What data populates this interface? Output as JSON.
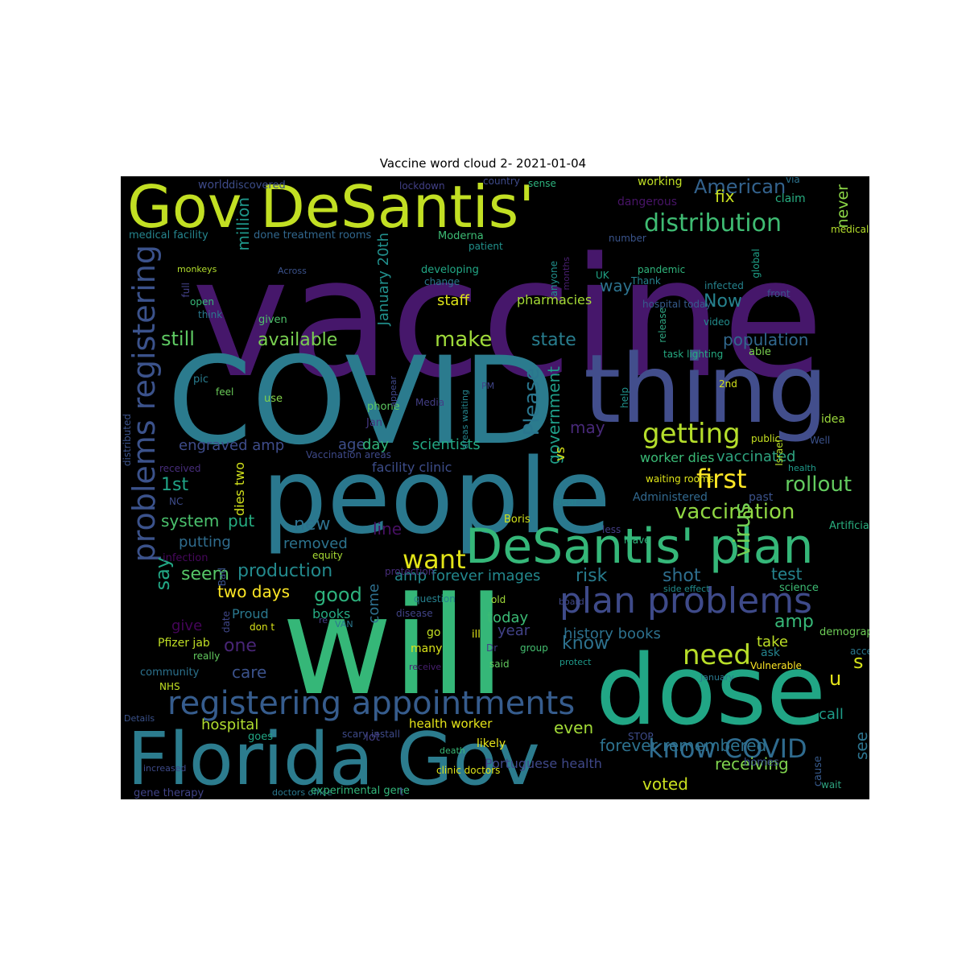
{
  "title": "Vaccine word cloud 2- 2021-01-04",
  "words": [
    {
      "t": "vaccine",
      "c": "#46176b"
    },
    {
      "t": "COVID",
      "c": "#2b7b8e"
    },
    {
      "t": "thing",
      "c": "#424e8c"
    },
    {
      "t": "people",
      "c": "#2a788e"
    },
    {
      "t": "will",
      "c": "#35b778"
    },
    {
      "t": "dose",
      "c": "#21a685"
    },
    {
      "t": "Gov DeSantis'",
      "c": "#c2df23"
    },
    {
      "t": "Florida Gov",
      "c": "#2c7c8e"
    },
    {
      "t": "DeSantis' plan",
      "c": "#35b779"
    },
    {
      "t": "plan problems",
      "c": "#3e4a89"
    },
    {
      "t": "registering appointments",
      "c": "#365c8d"
    },
    {
      "t": "problems registering",
      "c": "#3b528b"
    },
    {
      "t": "distribution",
      "c": "#3fbc73"
    },
    {
      "t": "getting",
      "c": "#b5de2b"
    },
    {
      "t": "first",
      "c": "#fde725"
    },
    {
      "t": "need",
      "c": "#b8de29"
    },
    {
      "t": "know COVID",
      "c": "#2f6b8e"
    },
    {
      "t": "vaccination",
      "c": "#90d743"
    },
    {
      "t": "rollout",
      "c": "#63cb5f"
    },
    {
      "t": "American",
      "c": "#33628d"
    },
    {
      "t": "want",
      "c": "#e2e418"
    },
    {
      "t": "make",
      "c": "#9fda3a"
    },
    {
      "t": "still",
      "c": "#5ec962"
    },
    {
      "t": "available",
      "c": "#7ad151"
    },
    {
      "t": "state",
      "c": "#287d8e"
    },
    {
      "t": "population",
      "c": "#31688e"
    },
    {
      "t": "Now",
      "c": "#26828e"
    },
    {
      "t": "way",
      "c": "#2c728e"
    },
    {
      "t": "staff",
      "c": "#dde318"
    },
    {
      "t": "pharmacies",
      "c": "#a5db36"
    },
    {
      "t": "fix",
      "c": "#c8e020"
    },
    {
      "t": "million",
      "c": "#1f978b"
    },
    {
      "t": "January 20th",
      "c": "#21908d"
    },
    {
      "t": "Please",
      "c": "#2a768e"
    },
    {
      "t": "government",
      "c": "#1f9e89"
    },
    {
      "t": "may",
      "c": "#482979"
    },
    {
      "t": "vs",
      "c": "#d8e219"
    },
    {
      "t": "scientists",
      "c": "#22a884"
    },
    {
      "t": "age",
      "c": "#3d4e8a"
    },
    {
      "t": "day",
      "c": "#31b57b"
    },
    {
      "t": "engraved amp",
      "c": "#3e4c8a"
    },
    {
      "t": "vaccinated",
      "c": "#2ea37f"
    },
    {
      "t": "worker dies",
      "c": "#3aba76"
    },
    {
      "t": "1st",
      "c": "#20a386"
    },
    {
      "t": "system",
      "c": "#4ac16d"
    },
    {
      "t": "put",
      "c": "#26ad81"
    },
    {
      "t": "new",
      "c": "#2d708e"
    },
    {
      "t": "line",
      "c": "#471063"
    },
    {
      "t": "putting",
      "c": "#2f6c8e"
    },
    {
      "t": "removed",
      "c": "#2c738e"
    },
    {
      "t": "say",
      "c": "#22a785"
    },
    {
      "t": "seem",
      "c": "#56c667"
    },
    {
      "t": "production",
      "c": "#238a8d"
    },
    {
      "t": "amp forever images",
      "c": "#23898e"
    },
    {
      "t": "risk",
      "c": "#287c8e"
    },
    {
      "t": "shot",
      "c": "#2e6e8e"
    },
    {
      "t": "test",
      "c": "#25848e"
    },
    {
      "t": "virus",
      "c": "#75d054"
    },
    {
      "t": "amp",
      "c": "#37b878"
    },
    {
      "t": "two days",
      "c": "#fde725"
    },
    {
      "t": "good",
      "c": "#2db27d"
    },
    {
      "t": "books",
      "c": "#25ab82"
    },
    {
      "t": "Proud",
      "c": "#2a788e"
    },
    {
      "t": "come",
      "c": "#2e6f8e"
    },
    {
      "t": "today",
      "c": "#3bbb75"
    },
    {
      "t": "give",
      "c": "#450559"
    },
    {
      "t": "one",
      "c": "#482576"
    },
    {
      "t": "year",
      "c": "#414287"
    },
    {
      "t": "know",
      "c": "#2d718e"
    },
    {
      "t": "history books",
      "c": "#2d718e"
    },
    {
      "t": "take",
      "c": "#bddf26"
    },
    {
      "t": "care",
      "c": "#3b528b"
    },
    {
      "t": "u",
      "c": "#e5e419"
    },
    {
      "t": "s",
      "c": "#d5e21a"
    },
    {
      "t": "even",
      "c": "#a2da37"
    },
    {
      "t": "hospital",
      "c": "#b0dd2f"
    },
    {
      "t": "health worker",
      "c": "#e5e419"
    },
    {
      "t": "call",
      "c": "#1e9c89"
    },
    {
      "t": "see",
      "c": "#2c738e"
    },
    {
      "t": "receiving",
      "c": "#7fd34e"
    },
    {
      "t": "voted",
      "c": "#cae11f"
    },
    {
      "t": "Portuguese health",
      "c": "#3f4889"
    },
    {
      "t": "forever remembered",
      "c": "#2d718e"
    },
    {
      "t": "never",
      "c": "#8bd646"
    },
    {
      "t": "dies two",
      "c": "#d2e21b"
    },
    {
      "t": "facility clinic",
      "c": "#3d4d8a"
    },
    {
      "t": "medical facility",
      "c": "#25858e"
    },
    {
      "t": "done treatment rooms",
      "c": "#31678e"
    },
    {
      "t": "Moderna",
      "c": "#3dbc74"
    },
    {
      "t": "claim",
      "c": "#27ad81"
    },
    {
      "t": "dangerous",
      "c": "#481467"
    },
    {
      "t": "working",
      "c": "#c0df25"
    },
    {
      "t": "world",
      "c": "#3e4a89"
    },
    {
      "t": "discovered",
      "c": "#3d4e8a"
    },
    {
      "t": "lockdown",
      "c": "#424086"
    },
    {
      "t": "sense",
      "c": "#2db27d"
    },
    {
      "t": "country",
      "c": "#3e4a89"
    },
    {
      "t": "via",
      "c": "#2c728e"
    },
    {
      "t": "medical",
      "c": "#b5de2b"
    },
    {
      "t": "number",
      "c": "#3a548c"
    },
    {
      "t": "patient",
      "c": "#21918c"
    },
    {
      "t": "developing",
      "c": "#22a785"
    },
    {
      "t": "change",
      "c": "#2a788e"
    },
    {
      "t": "UK",
      "c": "#20a486"
    },
    {
      "t": "anyone",
      "c": "#21908d"
    },
    {
      "t": "months",
      "c": "#481f70"
    },
    {
      "t": "pandemic",
      "c": "#2fb47c"
    },
    {
      "t": "Thank",
      "c": "#26828e"
    },
    {
      "t": "infected",
      "c": "#25838e"
    },
    {
      "t": "front",
      "c": "#3b528b"
    },
    {
      "t": "hospital today",
      "c": "#365c8d"
    },
    {
      "t": "global",
      "c": "#1fa188"
    },
    {
      "t": "video",
      "c": "#228c8d"
    },
    {
      "t": "release",
      "c": "#2ea37f"
    },
    {
      "t": "task lighting",
      "c": "#25ab82"
    },
    {
      "t": "able",
      "c": "#7ad151"
    },
    {
      "t": "monkeys",
      "c": "#b2dd2d"
    },
    {
      "t": "Across",
      "c": "#3b528b"
    },
    {
      "t": "full",
      "c": "#424086"
    },
    {
      "t": "open",
      "c": "#37b878"
    },
    {
      "t": "think",
      "c": "#2a788e"
    },
    {
      "t": "given",
      "c": "#4ec36b"
    },
    {
      "t": "pic",
      "c": "#287c8e"
    },
    {
      "t": "feel",
      "c": "#6ccd5a"
    },
    {
      "t": "use",
      "c": "#84d44b"
    },
    {
      "t": "phone",
      "c": "#5ec962"
    },
    {
      "t": "Media",
      "c": "#433e85"
    },
    {
      "t": "Jan",
      "c": "#453781"
    },
    {
      "t": "appear",
      "c": "#3f4889"
    },
    {
      "t": "PM",
      "c": "#404588"
    },
    {
      "t": "areas waiting",
      "c": "#25858e"
    },
    {
      "t": "help",
      "c": "#21918c"
    },
    {
      "t": "2nd",
      "c": "#d2e21b"
    },
    {
      "t": "idea",
      "c": "#9bd93c"
    },
    {
      "t": "public",
      "c": "#c5e021"
    },
    {
      "t": "Well",
      "c": "#3b528b"
    },
    {
      "t": "Israel",
      "c": "#b8de29"
    },
    {
      "t": "Vaccination areas",
      "c": "#3e4989"
    },
    {
      "t": "distributed",
      "c": "#3b528b"
    },
    {
      "t": "received",
      "c": "#472d7b"
    },
    {
      "t": "health",
      "c": "#1f9a8a"
    },
    {
      "t": "waiting rooms",
      "c": "#dde318"
    },
    {
      "t": "Administered",
      "c": "#31688e"
    },
    {
      "t": "past",
      "c": "#3b528b"
    },
    {
      "t": "NC",
      "c": "#3e4c8a"
    },
    {
      "t": "clear",
      "c": "#26828e"
    },
    {
      "t": "Boris",
      "c": "#d0e11c"
    },
    {
      "t": "less",
      "c": "#433d84"
    },
    {
      "t": "leave",
      "c": "#2fb47c"
    },
    {
      "t": "Artificial Sky",
      "c": "#29af7f"
    },
    {
      "t": "infection",
      "c": "#46085c"
    },
    {
      "t": "equity",
      "c": "#a8db34"
    },
    {
      "t": "side effect",
      "c": "#228c8d"
    },
    {
      "t": "science",
      "c": "#3dbc74"
    },
    {
      "t": "Bad",
      "c": "#3b528b"
    },
    {
      "t": "protection",
      "c": "#472c7a"
    },
    {
      "t": "question",
      "c": "#26818e"
    },
    {
      "t": "disease",
      "c": "#414487"
    },
    {
      "t": "old",
      "c": "#a0da39"
    },
    {
      "t": "board",
      "c": "#3f4788"
    },
    {
      "t": "date",
      "c": "#3f4788"
    },
    {
      "t": "don t",
      "c": "#d8e219"
    },
    {
      "t": "re",
      "c": "#433e85"
    },
    {
      "t": "go",
      "c": "#c2df23"
    },
    {
      "t": "Pfizer jab",
      "c": "#c0df25"
    },
    {
      "t": "really",
      "c": "#63cb5f"
    },
    {
      "t": "VAN",
      "c": "#2a778e"
    },
    {
      "t": "many",
      "c": "#dae319"
    },
    {
      "t": "ill",
      "c": "#e1e418"
    },
    {
      "t": "Dr",
      "c": "#424086"
    },
    {
      "t": "group",
      "c": "#44bf70"
    },
    {
      "t": "demographic",
      "c": "#6ece58"
    },
    {
      "t": "ask",
      "c": "#25848e"
    },
    {
      "t": "access",
      "c": "#2a788e"
    },
    {
      "t": "community",
      "c": "#2c728e"
    },
    {
      "t": "receive",
      "c": "#481f70"
    },
    {
      "t": "said",
      "c": "#63cb5f"
    },
    {
      "t": "protect",
      "c": "#1f9a8a"
    },
    {
      "t": "Vulnerable",
      "c": "#fde725"
    },
    {
      "t": "NHS",
      "c": "#c2df23"
    },
    {
      "t": "January",
      "c": "#2a788e"
    },
    {
      "t": "Details",
      "c": "#3b528b"
    },
    {
      "t": "goes",
      "c": "#22a785"
    },
    {
      "t": "scary install",
      "c": "#3e4a89"
    },
    {
      "t": "lot",
      "c": "#433e85"
    },
    {
      "t": "death",
      "c": "#38b977"
    },
    {
      "t": "likely",
      "c": "#e7e419"
    },
    {
      "t": "STOP",
      "c": "#3e4c8a"
    },
    {
      "t": "homes",
      "c": "#3b528b"
    },
    {
      "t": "cause",
      "c": "#375a8c"
    },
    {
      "t": "increased",
      "c": "#3e4a89"
    },
    {
      "t": "clinic doctors",
      "c": "#dde318"
    },
    {
      "t": "wait",
      "c": "#2ea37f"
    },
    {
      "t": "gene therapy",
      "c": "#414487"
    },
    {
      "t": "doctors office",
      "c": "#2a788e"
    },
    {
      "t": "experimental gene",
      "c": "#32b67a"
    },
    {
      "t": "t",
      "c": "#3e4a89"
    }
  ]
}
